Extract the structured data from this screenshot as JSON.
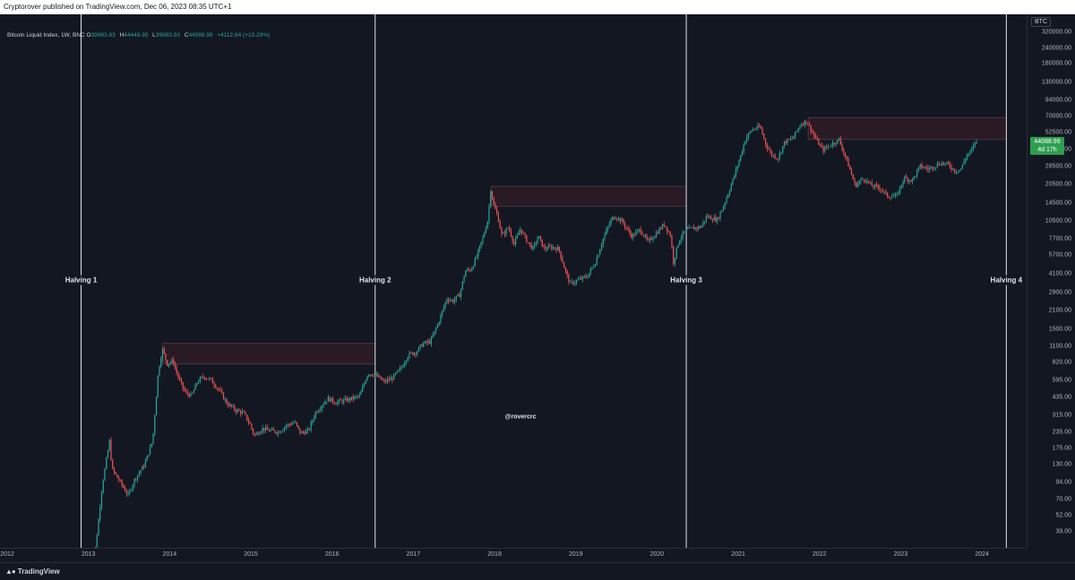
{
  "header": {
    "text": "Cryptorover published on TradingView.com, Dec 06, 2023 08:35 UTC+1"
  },
  "legend": {
    "symbol": "Bitcoin Liquid Index, 1W, BNC",
    "open_key": "O",
    "open": "39983.93",
    "high_key": "H",
    "high": "44448.95",
    "low_key": "L",
    "low": "39983.93",
    "close_key": "C",
    "close": "44088.99",
    "change": "+4112.84 (+10.29%)"
  },
  "currency": "BTC",
  "price_tag": {
    "price": "44088.99",
    "countdown": "4d 17h"
  },
  "watermark": "@rovercrc",
  "footer": {
    "brand": "TradingView"
  },
  "colors": {
    "background": "#131722",
    "up": "#26a69a",
    "down": "#ef5350",
    "zone_fill": "#2a1a24",
    "vline": "#e0e3eb",
    "price_tag": "#2e9e4f"
  },
  "chart_data": {
    "type": "candlestick",
    "scale": "log",
    "interval": "1W",
    "ylim": [
      32,
      400000
    ],
    "xlim": [
      2012.0,
      2024.55
    ],
    "y_ticks": [
      "320000.00",
      "240000.00",
      "180000.00",
      "130000.00",
      "94000.00",
      "70000.00",
      "52500.00",
      "38500.00",
      "28500.00",
      "20500.00",
      "14500.00",
      "10500.00",
      "7700.00",
      "5700.00",
      "4100.00",
      "2900.00",
      "2100.00",
      "1500.00",
      "1100.00",
      "820.00",
      "595.00",
      "435.00",
      "315.00",
      "235.00",
      "175.00",
      "130.00",
      "94.00",
      "70.00",
      "52.00",
      "39.00"
    ],
    "x_ticks": [
      "2012",
      "2013",
      "2014",
      "2015",
      "2016",
      "2017",
      "2018",
      "2019",
      "2020",
      "2021",
      "2022",
      "2023",
      "2024"
    ],
    "halvings": [
      {
        "label": "Halving 1",
        "date": 2012.91
      },
      {
        "label": "Halving 2",
        "date": 2016.53
      },
      {
        "label": "Halving 3",
        "date": 2020.36
      },
      {
        "label": "Halving 4",
        "date": 2024.3
      }
    ],
    "resistance_zones": [
      {
        "from": 2013.91,
        "to": 2016.53,
        "low": 800,
        "high": 1160
      },
      {
        "from": 2017.96,
        "to": 2020.36,
        "low": 13800,
        "high": 19800
      },
      {
        "from": 2021.86,
        "to": 2024.3,
        "low": 46000,
        "high": 68500
      }
    ],
    "price_path": [
      [
        2013.0,
        13
      ],
      [
        2013.1,
        30
      ],
      [
        2013.18,
        90
      ],
      [
        2013.27,
        200
      ],
      [
        2013.3,
        120
      ],
      [
        2013.38,
        100
      ],
      [
        2013.5,
        75
      ],
      [
        2013.58,
        100
      ],
      [
        2013.7,
        130
      ],
      [
        2013.8,
        200
      ],
      [
        2013.87,
        700
      ],
      [
        2013.92,
        1050
      ],
      [
        2013.98,
        800
      ],
      [
        2014.05,
        850
      ],
      [
        2014.12,
        620
      ],
      [
        2014.2,
        480
      ],
      [
        2014.28,
        450
      ],
      [
        2014.35,
        580
      ],
      [
        2014.43,
        640
      ],
      [
        2014.52,
        600
      ],
      [
        2014.62,
        500
      ],
      [
        2014.72,
        390
      ],
      [
        2014.82,
        350
      ],
      [
        2014.92,
        330
      ],
      [
        2015.0,
        270
      ],
      [
        2015.05,
        220
      ],
      [
        2015.15,
        250
      ],
      [
        2015.25,
        240
      ],
      [
        2015.35,
        235
      ],
      [
        2015.45,
        265
      ],
      [
        2015.55,
        280
      ],
      [
        2015.62,
        230
      ],
      [
        2015.72,
        240
      ],
      [
        2015.8,
        330
      ],
      [
        2015.88,
        380
      ],
      [
        2015.96,
        430
      ],
      [
        2016.05,
        400
      ],
      [
        2016.2,
        420
      ],
      [
        2016.35,
        450
      ],
      [
        2016.45,
        680
      ],
      [
        2016.55,
        650
      ],
      [
        2016.65,
        580
      ],
      [
        2016.75,
        620
      ],
      [
        2016.85,
        730
      ],
      [
        2016.95,
        950
      ],
      [
        2017.05,
        1000
      ],
      [
        2017.12,
        1150
      ],
      [
        2017.22,
        1200
      ],
      [
        2017.32,
        1700
      ],
      [
        2017.42,
        2600
      ],
      [
        2017.5,
        2500
      ],
      [
        2017.58,
        2800
      ],
      [
        2017.65,
        4300
      ],
      [
        2017.72,
        4400
      ],
      [
        2017.8,
        5800
      ],
      [
        2017.87,
        8000
      ],
      [
        2017.93,
        11000
      ],
      [
        2017.96,
        19000
      ],
      [
        2018.0,
        14000
      ],
      [
        2018.05,
        11500
      ],
      [
        2018.1,
        8000
      ],
      [
        2018.18,
        9500
      ],
      [
        2018.25,
        7000
      ],
      [
        2018.33,
        9200
      ],
      [
        2018.4,
        7500
      ],
      [
        2018.48,
        6400
      ],
      [
        2018.55,
        8000
      ],
      [
        2018.62,
        6400
      ],
      [
        2018.7,
        6600
      ],
      [
        2018.8,
        6400
      ],
      [
        2018.88,
        4300
      ],
      [
        2018.94,
        3400
      ],
      [
        2019.02,
        3600
      ],
      [
        2019.15,
        3900
      ],
      [
        2019.25,
        5000
      ],
      [
        2019.35,
        7800
      ],
      [
        2019.45,
        11000
      ],
      [
        2019.5,
        11500
      ],
      [
        2019.58,
        10500
      ],
      [
        2019.7,
        8000
      ],
      [
        2019.8,
        9100
      ],
      [
        2019.9,
        7200
      ],
      [
        2020.0,
        8500
      ],
      [
        2020.1,
        10000
      ],
      [
        2020.18,
        8000
      ],
      [
        2020.21,
        5000
      ],
      [
        2020.28,
        7500
      ],
      [
        2020.36,
        8900
      ],
      [
        2020.45,
        9300
      ],
      [
        2020.55,
        9500
      ],
      [
        2020.62,
        11500
      ],
      [
        2020.75,
        10800
      ],
      [
        2020.82,
        13500
      ],
      [
        2020.9,
        18500
      ],
      [
        2020.96,
        24000
      ],
      [
        2021.03,
        33000
      ],
      [
        2021.1,
        47000
      ],
      [
        2021.18,
        55000
      ],
      [
        2021.28,
        58000
      ],
      [
        2021.35,
        42000
      ],
      [
        2021.42,
        35000
      ],
      [
        2021.5,
        33000
      ],
      [
        2021.58,
        44000
      ],
      [
        2021.68,
        47000
      ],
      [
        2021.78,
        61000
      ],
      [
        2021.85,
        64000
      ],
      [
        2021.9,
        56000
      ],
      [
        2021.96,
        47000
      ],
      [
        2022.05,
        38000
      ],
      [
        2022.15,
        42000
      ],
      [
        2022.25,
        46000
      ],
      [
        2022.35,
        31000
      ],
      [
        2022.45,
        20000
      ],
      [
        2022.55,
        23000
      ],
      [
        2022.65,
        20000
      ],
      [
        2022.75,
        19300
      ],
      [
        2022.85,
        16500
      ],
      [
        2022.96,
        16600
      ],
      [
        2023.05,
        23000
      ],
      [
        2023.15,
        22000
      ],
      [
        2023.25,
        28500
      ],
      [
        2023.35,
        27000
      ],
      [
        2023.5,
        30200
      ],
      [
        2023.6,
        29200
      ],
      [
        2023.68,
        26000
      ],
      [
        2023.75,
        27000
      ],
      [
        2023.82,
        34500
      ],
      [
        2023.88,
        37500
      ],
      [
        2023.93,
        44088.99
      ]
    ]
  }
}
